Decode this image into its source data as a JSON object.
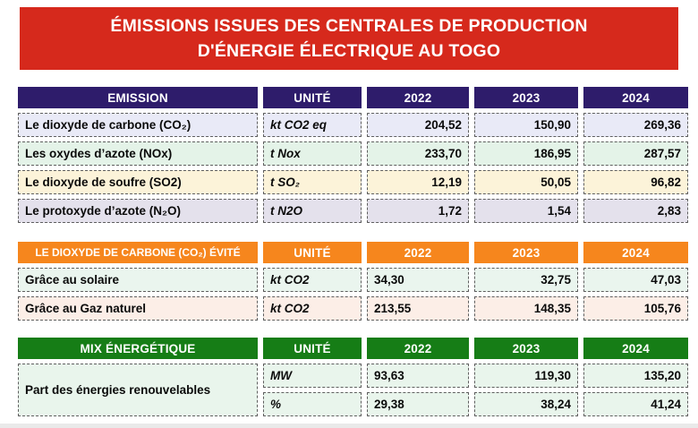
{
  "banner": {
    "line1": "ÉMISSIONS ISSUES DES CENTRALES DE PRODUCTION",
    "line2": "D'ÉNERGIE ÉLECTRIQUE AU TOGO",
    "bg": "#D6291C",
    "text_color": "#FFFFFF"
  },
  "emission_table": {
    "title": "EMISSION",
    "unit_header": "UNITÉ",
    "years": [
      "2022",
      "2023",
      "2024"
    ],
    "header_bg": "#2E1C6B",
    "rows": [
      {
        "label": "Le dioxyde de carbone (CO₂)",
        "unit": "kt CO2 eq",
        "y2022": "204,52",
        "y2023": "150,90",
        "y2024": "269,36",
        "bg": "#E9EAF7"
      },
      {
        "label": "Les oxydes d’azote (NOx)",
        "unit": "t Nox",
        "y2022": "233,70",
        "y2023": "186,95",
        "y2024": "287,57",
        "bg": "#E4F3E8"
      },
      {
        "label": "Le dioxyde de soufre (SO2)",
        "unit": "t SO₂",
        "y2022": "12,19",
        "y2023": "50,05",
        "y2024": "96,82",
        "bg": "#FCF3D9"
      },
      {
        "label": "Le protoxyde d’azote (N₂O)",
        "unit": "t N2O",
        "y2022": "1,72",
        "y2023": "1,54",
        "y2024": "2,83",
        "bg": "#E4E1EC"
      }
    ]
  },
  "avoided_co2_table": {
    "title": "LE DIOXYDE DE CARBONE (CO₂) ÉVITÉ",
    "unit_header": "UNITÉ",
    "years": [
      "2022",
      "2023",
      "2024"
    ],
    "header_bg": "#F6861D",
    "rows": [
      {
        "label": "Grâce au solaire",
        "unit": "kt CO2",
        "y2022": "34,30",
        "y2023": "32,75",
        "y2024": "47,03",
        "bg": "#EAF5EE"
      },
      {
        "label": "Grâce au Gaz naturel",
        "unit": "kt CO2",
        "y2022": "213,55",
        "y2023": "148,35",
        "y2024": "105,76",
        "bg": "#FCEEE7"
      }
    ]
  },
  "energy_mix_table": {
    "title": "MIX ÉNERGÉTIQUE",
    "unit_header": "UNITÉ",
    "years": [
      "2022",
      "2023",
      "2024"
    ],
    "header_bg": "#167D16",
    "row_label": "Part des énergies renouvelables",
    "label_bg": "#E9F5EC",
    "rows": [
      {
        "unit": "MW",
        "y2022": "93,63",
        "y2023": "119,30",
        "y2024": "135,20",
        "bg": "#E9F5EC"
      },
      {
        "unit": "%",
        "y2022": "29,38",
        "y2023": "38,24",
        "y2024": "41,24",
        "bg": "#E9F5EC"
      }
    ]
  },
  "page": {
    "background": "#FFFFFF",
    "footer_strip_color": "#E9E9E9"
  }
}
